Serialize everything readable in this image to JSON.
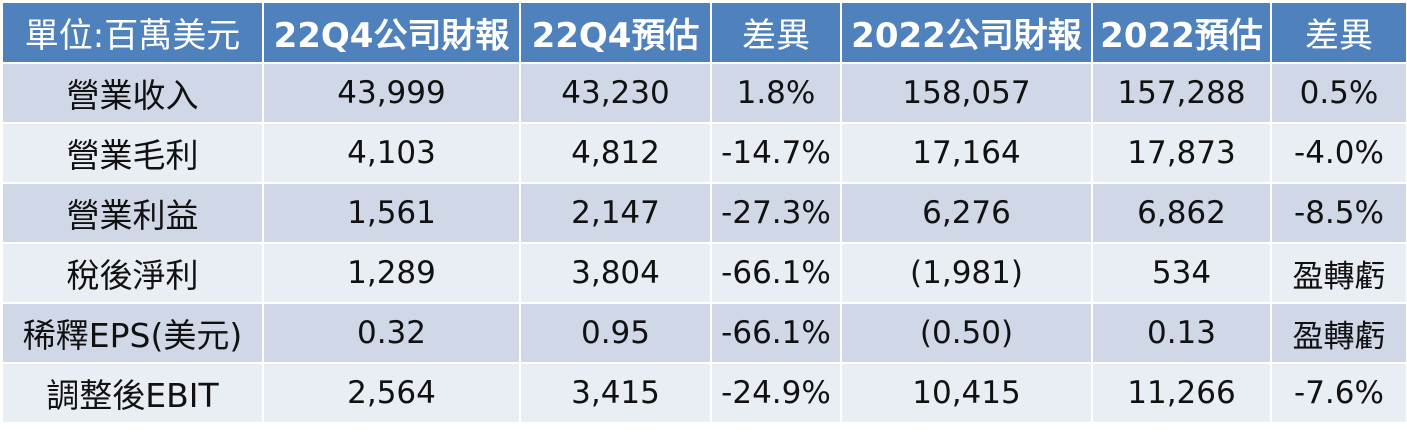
{
  "table": {
    "headers": [
      "單位:百萬美元",
      "22Q4公司財報",
      "22Q4預估",
      "差異",
      "2022公司財報",
      "2022預估",
      "差異"
    ],
    "rows": [
      {
        "label": "營業收入",
        "cells": [
          "43,999",
          "43,230",
          "1.8%",
          "158,057",
          "157,288",
          "0.5%"
        ]
      },
      {
        "label": "營業毛利",
        "cells": [
          "4,103",
          "4,812",
          "-14.7%",
          "17,164",
          "17,873",
          "-4.0%"
        ]
      },
      {
        "label": "營業利益",
        "cells": [
          "1,561",
          "2,147",
          "-27.3%",
          "6,276",
          "6,862",
          "-8.5%"
        ]
      },
      {
        "label": "稅後淨利",
        "cells": [
          "1,289",
          "3,804",
          "-66.1%",
          "(1,981)",
          "534",
          "盈轉虧"
        ]
      },
      {
        "label": "稀釋EPS(美元)",
        "cells": [
          "0.32",
          "0.95",
          "-66.1%",
          "(0.50)",
          "0.13",
          "盈轉虧"
        ]
      },
      {
        "label": "調整後EBIT",
        "cells": [
          "2,564",
          "3,415",
          "-24.9%",
          "10,415",
          "11,266",
          "-7.6%"
        ]
      }
    ]
  },
  "colors": {
    "header_bg": "#4f81bd",
    "row_odd_bg": "#d0d8e8",
    "row_even_bg": "#e9edf4",
    "header_text": "#ffffff"
  }
}
